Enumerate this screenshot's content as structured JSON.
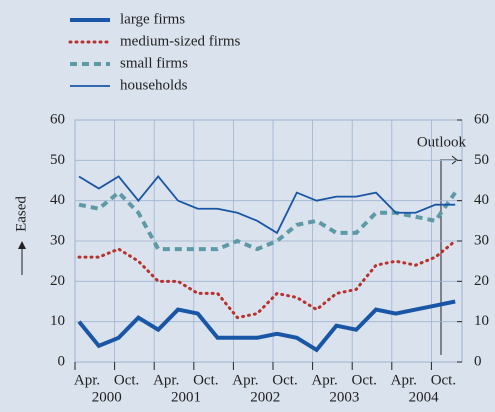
{
  "chart_data": {
    "type": "line",
    "y_axis_label": "Eased",
    "annotation": "Outlook",
    "categories": [
      "Apr.",
      null,
      "Oct.",
      null,
      "Apr.",
      null,
      "Oct.",
      null,
      "Apr.",
      null,
      "Oct.",
      null,
      "Apr.",
      null,
      "Oct.",
      null,
      "Apr.",
      null,
      "Oct.",
      null
    ],
    "year_labels": [
      "2000",
      "2001",
      "2002",
      "2003",
      "2004"
    ],
    "series": [
      {
        "name": "large firms",
        "color": "#1a56a6",
        "style": "thick",
        "values": [
          10,
          4,
          6,
          11,
          8,
          13,
          12,
          6,
          6,
          6,
          7,
          6,
          3,
          9,
          8,
          13,
          12,
          13,
          14,
          15
        ]
      },
      {
        "name": "medium-sized firms",
        "color": "#b8322d",
        "style": "dotted",
        "values": [
          26,
          26,
          28,
          25,
          20,
          20,
          17,
          17,
          11,
          12,
          17,
          16,
          13,
          17,
          18,
          24,
          25,
          24,
          26,
          30
        ]
      },
      {
        "name": "small firms",
        "color": "#5e9aa5",
        "style": "dashed",
        "values": [
          39,
          38,
          42,
          37,
          28,
          28,
          28,
          28,
          30,
          28,
          30,
          34,
          35,
          32,
          32,
          37,
          37,
          36,
          35,
          42
        ]
      },
      {
        "name": "households",
        "color": "#1a56a6",
        "style": "thin",
        "values": [
          46,
          43,
          46,
          40,
          46,
          40,
          38,
          38,
          37,
          35,
          32,
          42,
          40,
          41,
          41,
          42,
          37,
          37,
          39,
          39
        ]
      }
    ],
    "ylim": [
      0,
      60
    ],
    "yticks": [
      0,
      10,
      20,
      30,
      40,
      50,
      60
    ],
    "y2lim": [
      0,
      60
    ],
    "y2ticks": [
      0,
      10,
      20,
      30,
      40,
      50,
      60
    ],
    "grid": true
  }
}
